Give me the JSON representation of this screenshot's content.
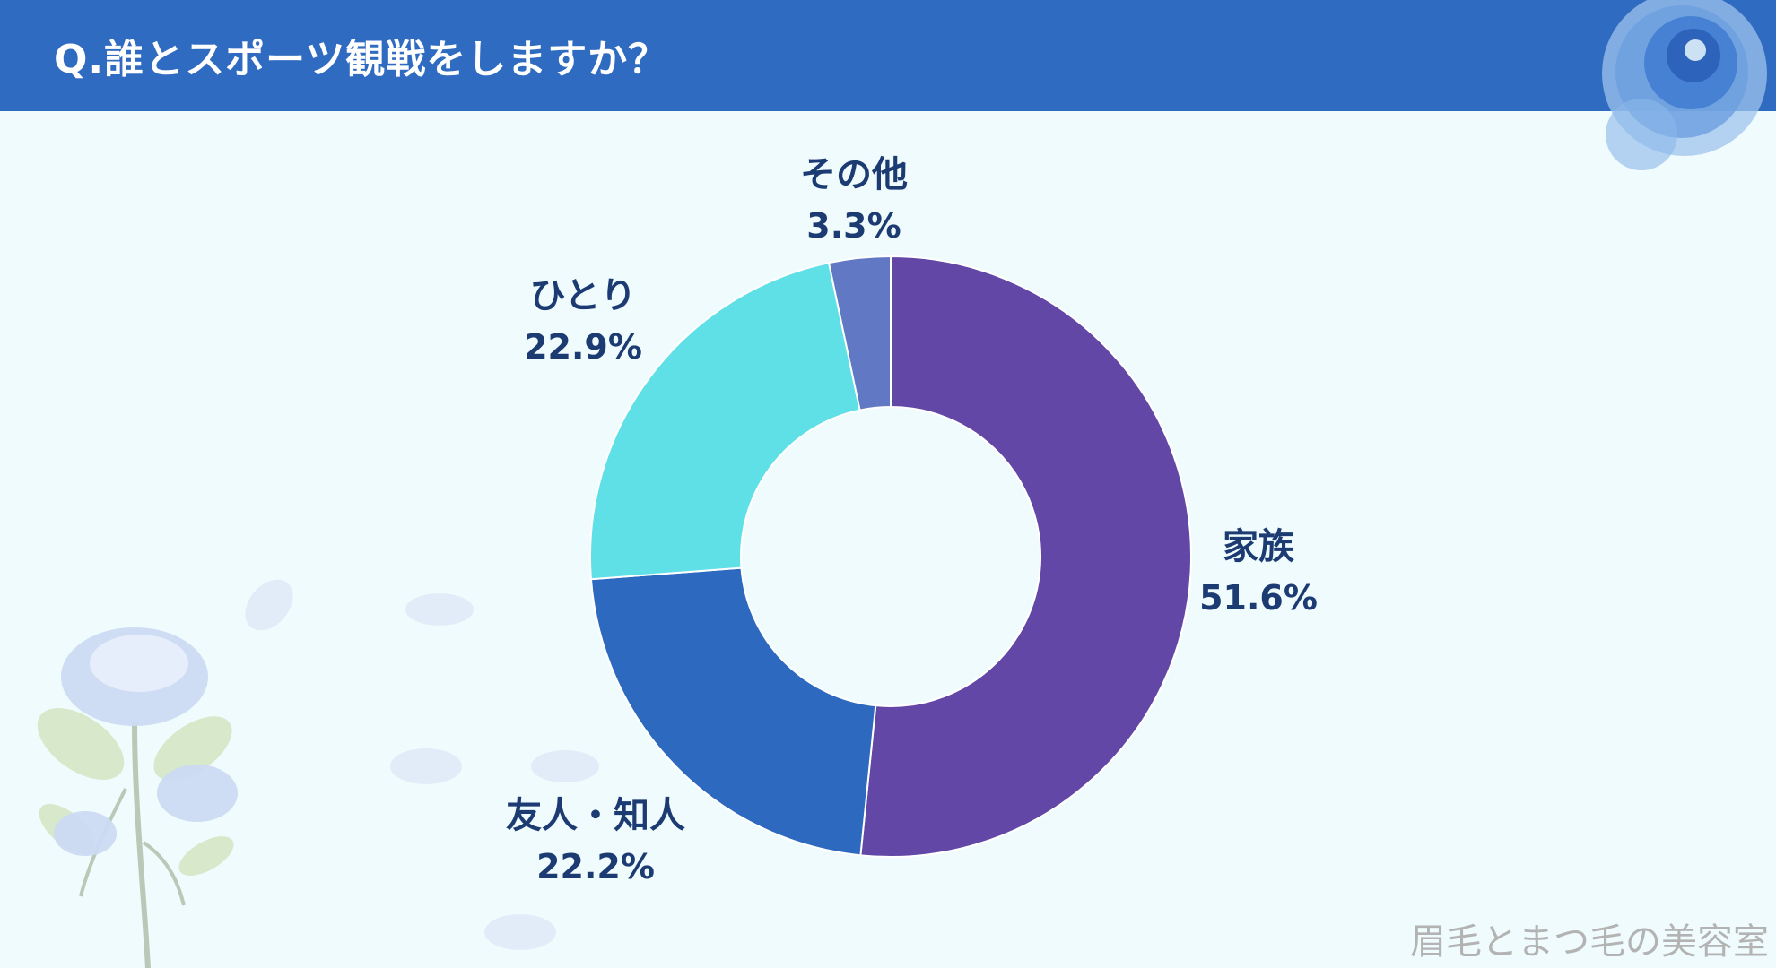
{
  "header": {
    "title": "Q.誰とスポーツ観戦をしますか？"
  },
  "watermark": "眉毛とまつ毛の美容室",
  "colors": {
    "header_bg": "#2f6bc1",
    "background": "#effbfc",
    "label_text": "#1d3b73"
  },
  "chart_data": {
    "type": "pie",
    "donut": true,
    "title": "",
    "start": "12 o'clock, clockwise",
    "slices": [
      {
        "label": "家族",
        "value": 51.6,
        "display": "51.6%",
        "color": "#6347a6"
      },
      {
        "label": "友人・知人",
        "value": 22.2,
        "display": "22.2%",
        "color": "#2d69bf"
      },
      {
        "label": "ひとり",
        "value": 22.9,
        "display": "22.9%",
        "color": "#5fe0e6"
      },
      {
        "label": "その他",
        "value": 3.3,
        "display": "3.3%",
        "color": "#6178c4"
      }
    ]
  }
}
